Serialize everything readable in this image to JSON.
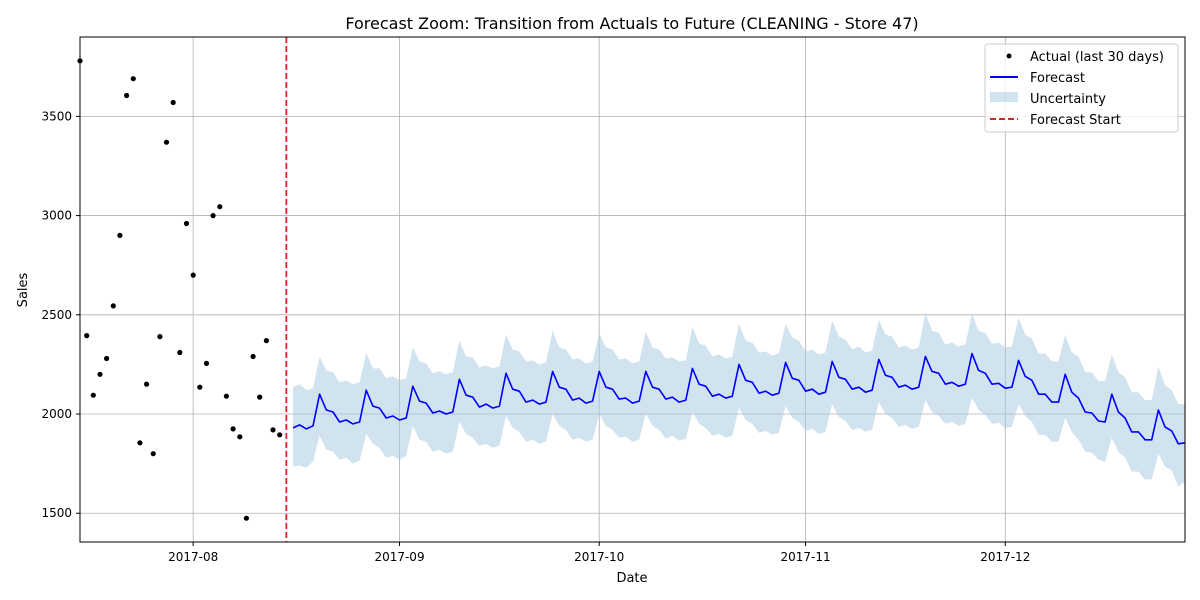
{
  "chart_data": {
    "type": "line",
    "title": "Forecast Zoom: Transition from Actuals to Future (CLEANING - Store 47)",
    "xlabel": "Date",
    "ylabel": "Sales",
    "xlim": [
      "2017-07-15",
      "2017-12-28"
    ],
    "ylim": [
      1355,
      3900
    ],
    "grid": true,
    "legend_position": "top-right",
    "x_ticks": [
      "2017-08-01",
      "2017-09-01",
      "2017-10-01",
      "2017-11-01",
      "2017-12-01"
    ],
    "x_tick_labels": [
      "2017-08",
      "2017-09",
      "2017-10",
      "2017-11",
      "2017-12"
    ],
    "y_ticks": [
      1500,
      2000,
      2500,
      3000,
      3500
    ],
    "y_tick_labels": [
      "1500",
      "2000",
      "2500",
      "3000",
      "3500"
    ],
    "colors": {
      "actual": "#000000",
      "forecast": "#0000ff",
      "uncertainty": "#a6c8e2",
      "forecast_start": "#d62728"
    },
    "legend": {
      "actual": "Actual (last 30 days)",
      "forecast": "Forecast",
      "uncertainty": "Uncertainty",
      "forecast_start": "Forecast Start"
    },
    "forecast_start_date": "2017-08-15",
    "actual": {
      "start_date": "2017-07-15",
      "values": [
        3780,
        2395,
        2095,
        2200,
        2280,
        2545,
        2900,
        3605,
        3690,
        1855,
        2150,
        1800,
        2390,
        3370,
        3570,
        2310,
        2960,
        2700,
        2135,
        2255,
        3000,
        3045,
        2090,
        1925,
        1885,
        1475,
        2290,
        2085,
        2370,
        1920,
        1895
      ]
    },
    "forecast": {
      "start_date": "2017-08-16",
      "values": [
        1930,
        1945,
        1925,
        1940,
        2100,
        2020,
        2010,
        1960,
        1970,
        1950,
        1960,
        2120,
        2040,
        2030,
        1980,
        1990,
        1970,
        1980,
        2140,
        2065,
        2055,
        2005,
        2015,
        2000,
        2010,
        2175,
        2095,
        2085,
        2035,
        2050,
        2030,
        2040,
        2205,
        2125,
        2115,
        2060,
        2070,
        2050,
        2060,
        2215,
        2135,
        2125,
        2070,
        2080,
        2055,
        2065,
        2215,
        2135,
        2125,
        2075,
        2080,
        2055,
        2065,
        2215,
        2135,
        2125,
        2075,
        2085,
        2060,
        2070,
        2230,
        2150,
        2140,
        2090,
        2100,
        2080,
        2090,
        2250,
        2170,
        2160,
        2105,
        2115,
        2095,
        2105,
        2260,
        2180,
        2170,
        2115,
        2125,
        2100,
        2110,
        2265,
        2185,
        2175,
        2125,
        2135,
        2110,
        2120,
        2275,
        2195,
        2185,
        2135,
        2145,
        2125,
        2135,
        2290,
        2215,
        2205,
        2150,
        2160,
        2140,
        2150,
        2305,
        2220,
        2205,
        2150,
        2155,
        2130,
        2135,
        2270,
        2190,
        2170,
        2100,
        2100,
        2060,
        2060,
        2200,
        2110,
        2080,
        2010,
        2005,
        1965,
        1960,
        2100,
        2010,
        1980,
        1910,
        1910,
        1870,
        1870,
        2020,
        1935,
        1915,
        1850,
        1855
      ]
    },
    "uncertainty": {
      "start_date": "2017-08-16",
      "lower": [
        1735,
        1740,
        1730,
        1760,
        1890,
        1820,
        1810,
        1770,
        1780,
        1750,
        1765,
        1900,
        1850,
        1830,
        1780,
        1790,
        1770,
        1790,
        1940,
        1870,
        1860,
        1810,
        1820,
        1800,
        1810,
        1960,
        1900,
        1880,
        1840,
        1850,
        1830,
        1840,
        1990,
        1930,
        1910,
        1860,
        1870,
        1850,
        1860,
        2000,
        1940,
        1920,
        1870,
        1880,
        1860,
        1870,
        2000,
        1940,
        1920,
        1880,
        1885,
        1860,
        1870,
        2000,
        1940,
        1920,
        1875,
        1890,
        1865,
        1875,
        2010,
        1950,
        1930,
        1890,
        1900,
        1880,
        1890,
        2030,
        1970,
        1950,
        1905,
        1915,
        1895,
        1905,
        2040,
        1980,
        1960,
        1915,
        1925,
        1900,
        1910,
        2050,
        1985,
        1965,
        1920,
        1930,
        1910,
        1920,
        2060,
        2000,
        1980,
        1935,
        1945,
        1925,
        1935,
        2070,
        2010,
        1990,
        1950,
        1960,
        1940,
        1950,
        2080,
        2020,
        1995,
        1950,
        1955,
        1930,
        1935,
        2050,
        1990,
        1960,
        1895,
        1895,
        1860,
        1860,
        1980,
        1910,
        1870,
        1810,
        1805,
        1770,
        1760,
        1880,
        1810,
        1780,
        1710,
        1710,
        1670,
        1670,
        1800,
        1735,
        1715,
        1635,
        1660
      ],
      "upper": [
        2135,
        2150,
        2120,
        2130,
        2290,
        2220,
        2210,
        2160,
        2170,
        2150,
        2160,
        2310,
        2230,
        2230,
        2180,
        2190,
        2170,
        2180,
        2335,
        2265,
        2255,
        2205,
        2215,
        2200,
        2210,
        2370,
        2290,
        2285,
        2235,
        2245,
        2230,
        2240,
        2400,
        2325,
        2315,
        2265,
        2270,
        2250,
        2260,
        2420,
        2335,
        2325,
        2275,
        2280,
        2255,
        2265,
        2410,
        2335,
        2325,
        2275,
        2280,
        2255,
        2265,
        2415,
        2335,
        2325,
        2280,
        2285,
        2265,
        2270,
        2440,
        2355,
        2345,
        2290,
        2300,
        2280,
        2290,
        2455,
        2370,
        2360,
        2310,
        2315,
        2295,
        2305,
        2455,
        2385,
        2370,
        2315,
        2325,
        2300,
        2310,
        2470,
        2390,
        2375,
        2325,
        2340,
        2310,
        2320,
        2475,
        2400,
        2390,
        2335,
        2345,
        2325,
        2335,
        2510,
        2420,
        2410,
        2350,
        2360,
        2340,
        2350,
        2505,
        2420,
        2410,
        2355,
        2360,
        2335,
        2340,
        2485,
        2400,
        2380,
        2305,
        2305,
        2265,
        2265,
        2400,
        2310,
        2290,
        2210,
        2210,
        2165,
        2165,
        2300,
        2210,
        2185,
        2110,
        2110,
        2070,
        2070,
        2240,
        2145,
        2120,
        2050,
        2050
      ]
    }
  }
}
